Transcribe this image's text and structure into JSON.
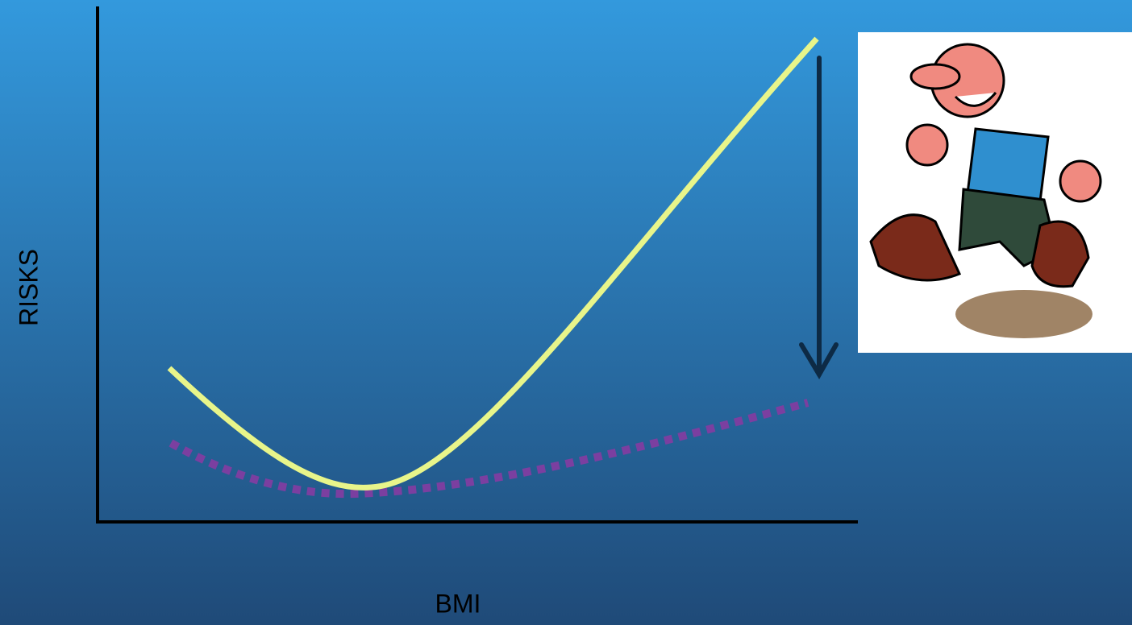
{
  "axis_labels": {
    "y": "RISKS",
    "x": "BMI"
  }
}
